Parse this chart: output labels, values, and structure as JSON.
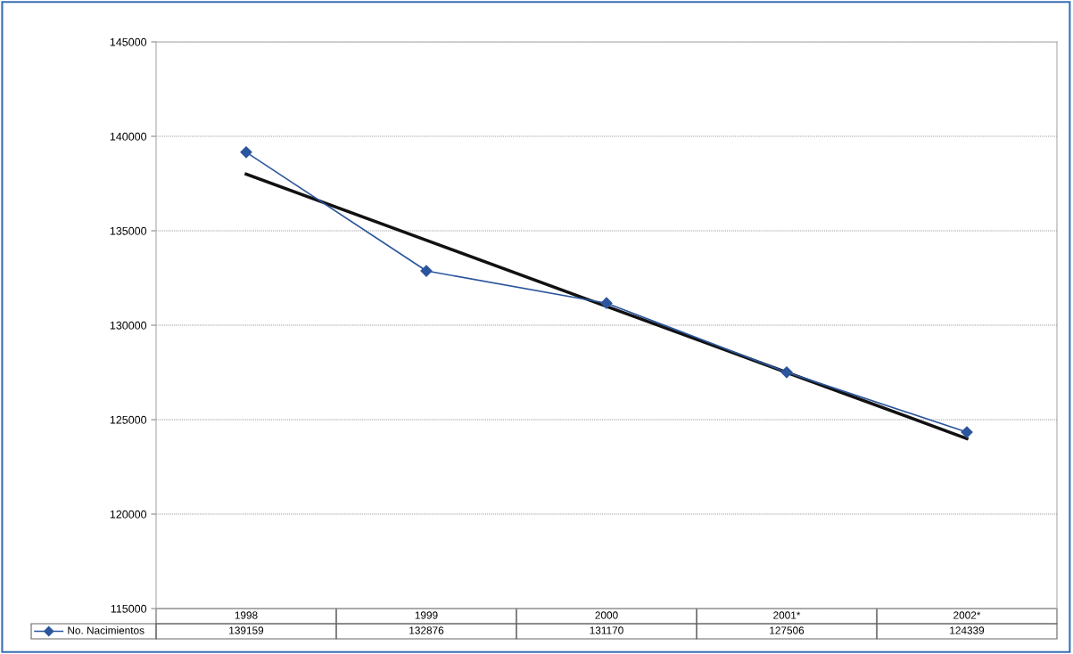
{
  "chart_data": {
    "type": "line",
    "categories": [
      "1998",
      "1999",
      "2000",
      "2001*",
      "2002*"
    ],
    "series": [
      {
        "name": "No. Nacimientos",
        "color": "#2b559c",
        "values": [
          139159,
          132876,
          131170,
          127506,
          124339
        ],
        "value_labels": [
          "139159",
          "132876",
          "131170",
          "127506",
          "124339"
        ],
        "marker": "diamond"
      },
      {
        "type": "line",
        "color": "#111111",
        "values": [
          138000,
          134500,
          131000,
          127500,
          124000
        ],
        "marker": "none"
      }
    ],
    "ylim": [
      115000,
      145000
    ],
    "yticks": [
      115000,
      120000,
      125000,
      130000,
      135000,
      140000,
      145000
    ],
    "grid": "y",
    "legend": "bottom left",
    "line_style": "solid"
  }
}
